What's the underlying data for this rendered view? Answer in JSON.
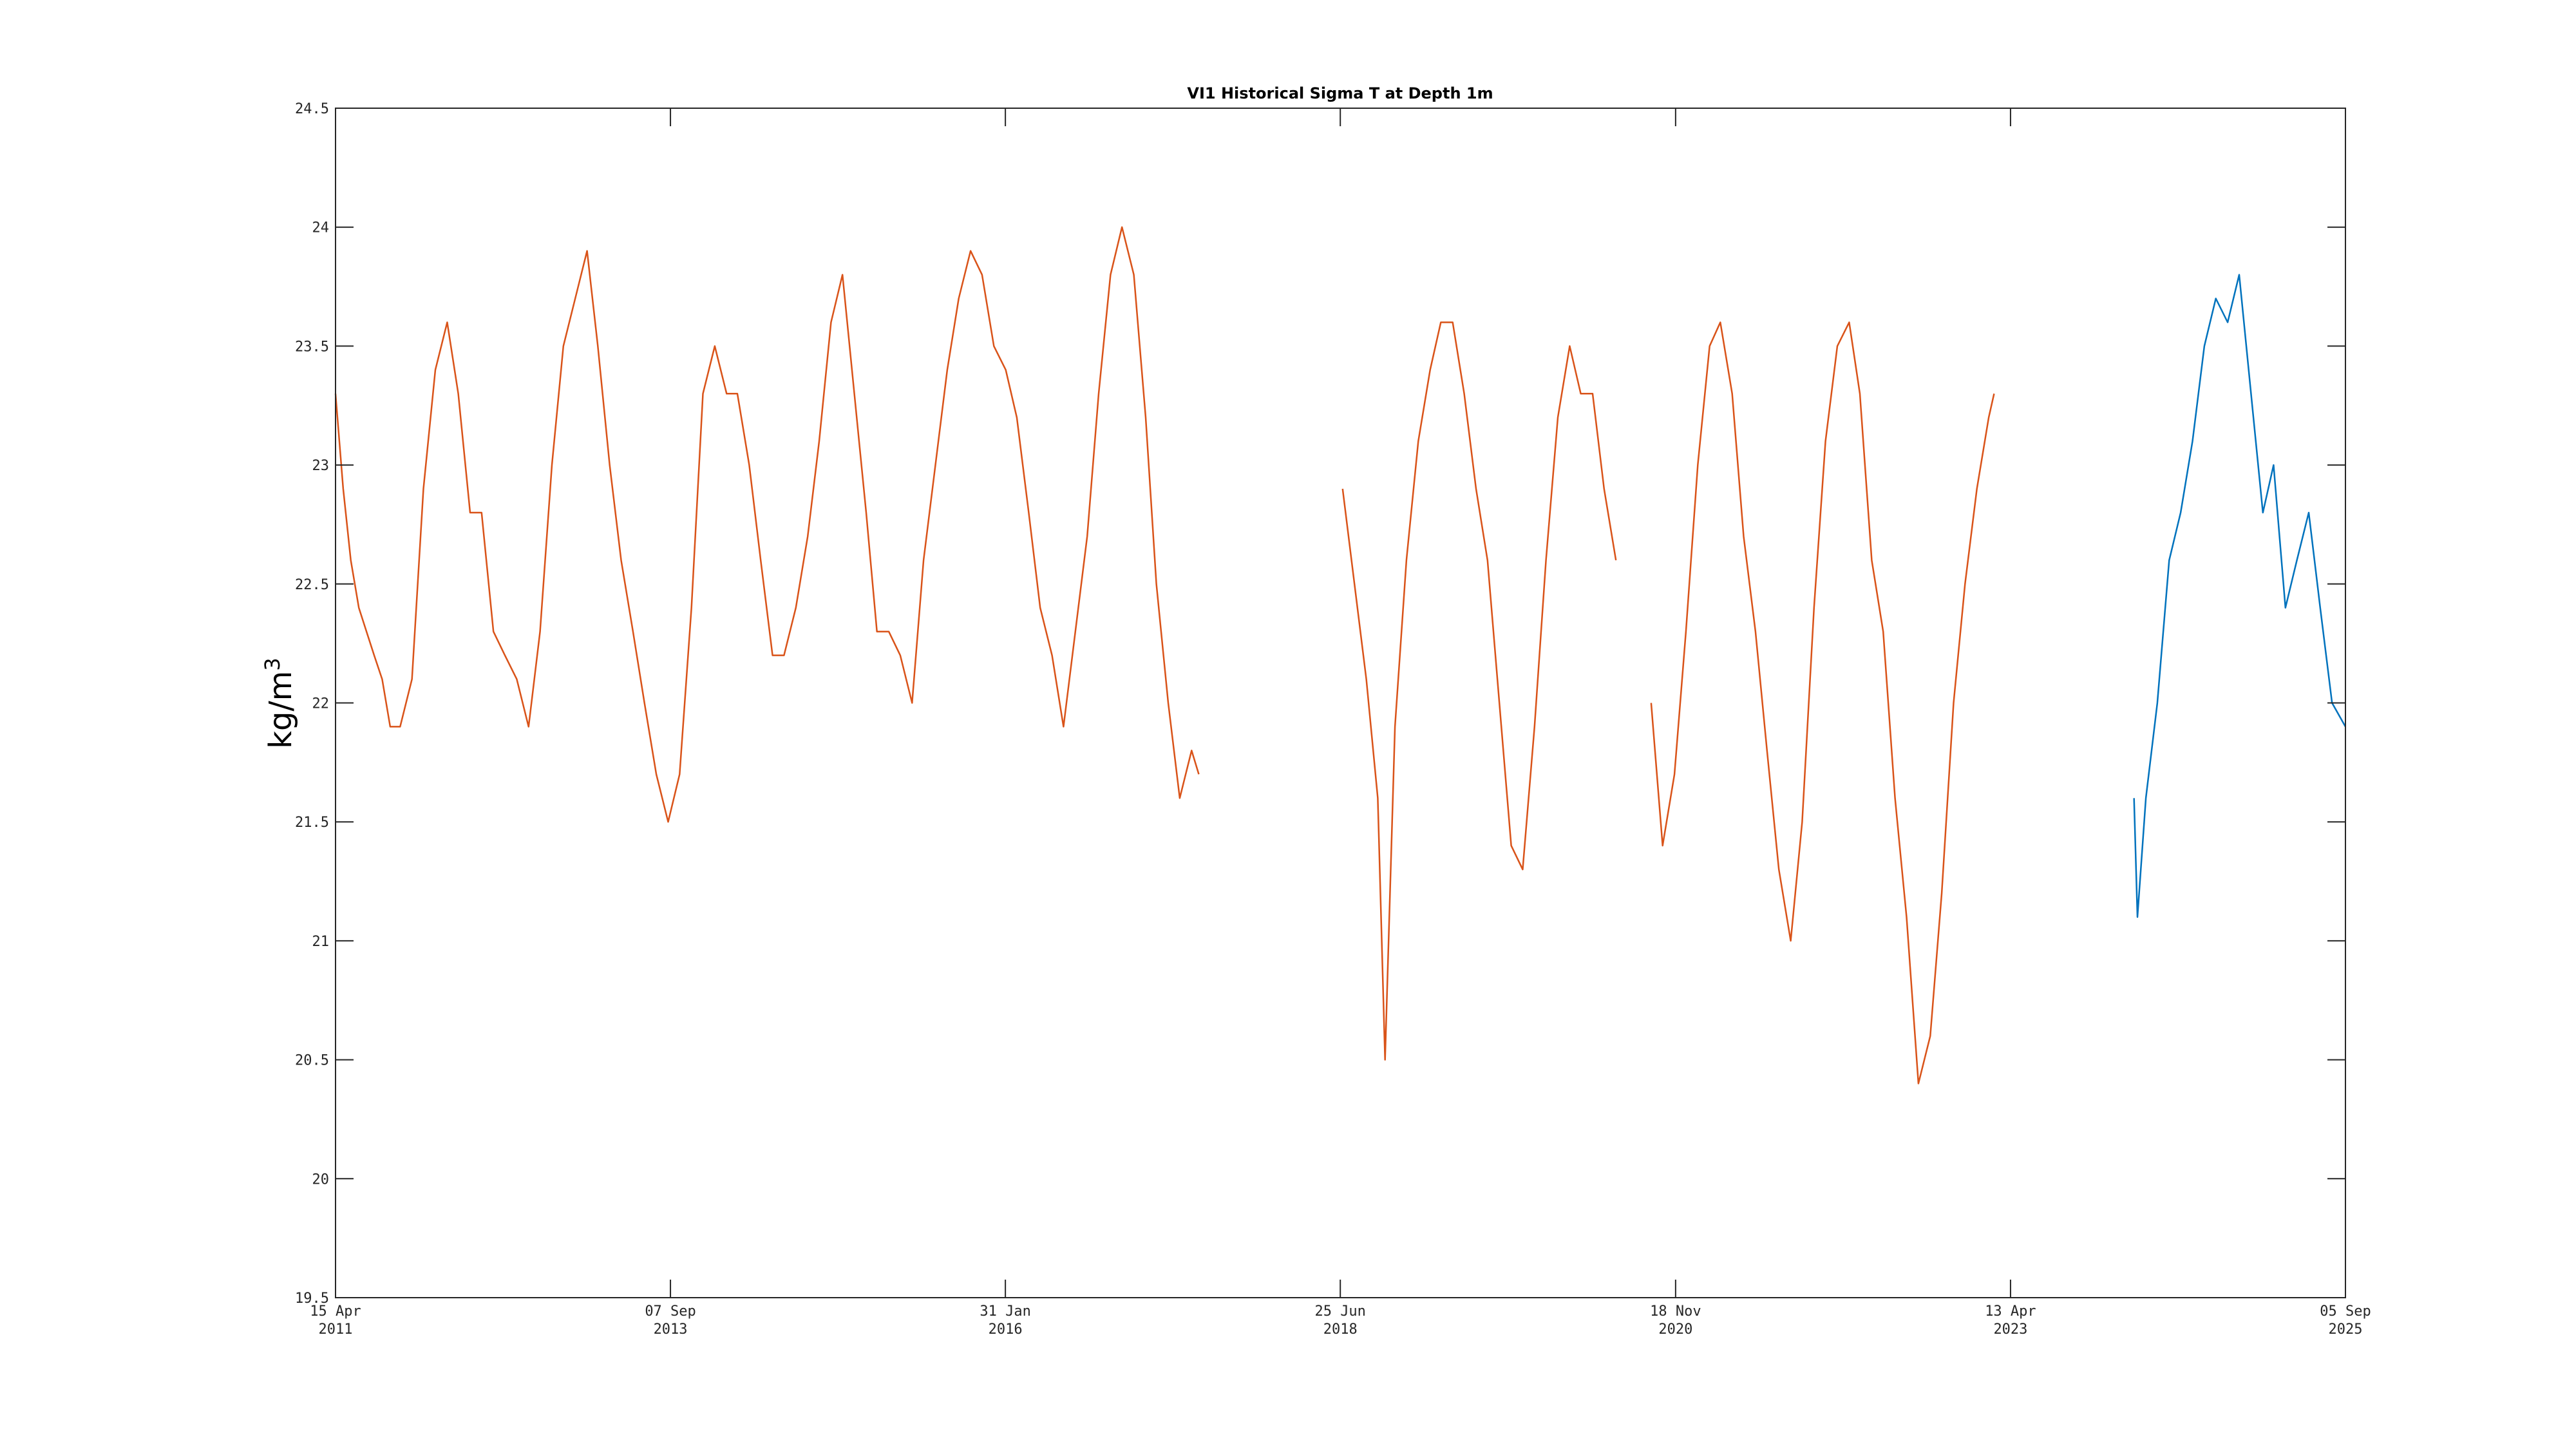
{
  "chart_data": {
    "type": "line",
    "title": "VI1 Historical Sigma T at Depth 1m",
    "ylabel": "kg/m",
    "ylabel_superscript": "3",
    "xlabel": "",
    "ylim": [
      19.5,
      24.5
    ],
    "yticks": [
      19.5,
      20,
      20.5,
      21,
      21.5,
      22,
      22.5,
      23,
      23.5,
      24,
      24.5
    ],
    "xlim": [
      "2011-04-15",
      "2025-09-05"
    ],
    "xticks": [
      {
        "date": "2011-04-15",
        "line1": "15 Apr",
        "line2": "2011"
      },
      {
        "date": "2013-09-07",
        "line1": "07 Sep",
        "line2": "2013"
      },
      {
        "date": "2016-01-31",
        "line1": "31 Jan",
        "line2": "2016"
      },
      {
        "date": "2018-06-25",
        "line1": "25 Jun",
        "line2": "2018"
      },
      {
        "date": "2020-11-18",
        "line1": "18 Nov",
        "line2": "2020"
      },
      {
        "date": "2023-04-13",
        "line1": "13 Apr",
        "line2": "2023"
      },
      {
        "date": "2025-09-05",
        "line1": "05 Sep",
        "line2": "2025"
      }
    ],
    "grid": false,
    "series": [
      {
        "color": "#D95319",
        "segments": [
          [
            [
              "2011-04-15",
              23.3
            ],
            [
              "2011-05-05",
              22.9
            ],
            [
              "2011-05-25",
              22.6
            ],
            [
              "2011-06-15",
              22.4
            ],
            [
              "2011-07-05",
              22.3
            ],
            [
              "2011-07-25",
              22.2
            ],
            [
              "2011-08-15",
              22.1
            ],
            [
              "2011-09-05",
              21.9
            ],
            [
              "2011-10-01",
              21.9
            ],
            [
              "2011-11-01",
              22.1
            ],
            [
              "2011-12-01",
              22.9
            ],
            [
              "2012-01-01",
              23.4
            ],
            [
              "2012-02-01",
              23.6
            ],
            [
              "2012-03-01",
              23.3
            ],
            [
              "2012-04-01",
              22.8
            ],
            [
              "2012-05-01",
              22.8
            ],
            [
              "2012-06-01",
              22.3
            ],
            [
              "2012-07-01",
              22.2
            ],
            [
              "2012-08-01",
              22.1
            ],
            [
              "2012-09-01",
              21.9
            ],
            [
              "2012-10-01",
              22.3
            ],
            [
              "2012-11-01",
              23.0
            ],
            [
              "2012-12-01",
              23.5
            ],
            [
              "2013-01-01",
              23.7
            ],
            [
              "2013-02-01",
              23.9
            ],
            [
              "2013-03-01",
              23.5
            ],
            [
              "2013-04-01",
              23.0
            ],
            [
              "2013-05-01",
              22.6
            ],
            [
              "2013-06-01",
              22.3
            ],
            [
              "2013-07-01",
              22.0
            ],
            [
              "2013-08-01",
              21.7
            ],
            [
              "2013-09-01",
              21.5
            ],
            [
              "2013-10-01",
              21.7
            ],
            [
              "2013-11-01",
              22.4
            ],
            [
              "2013-12-01",
              23.3
            ],
            [
              "2014-01-01",
              23.5
            ],
            [
              "2014-02-01",
              23.3
            ],
            [
              "2014-03-01",
              23.3
            ],
            [
              "2014-04-01",
              23.0
            ],
            [
              "2014-05-01",
              22.6
            ],
            [
              "2014-06-01",
              22.2
            ],
            [
              "2014-07-01",
              22.2
            ],
            [
              "2014-08-01",
              22.4
            ],
            [
              "2014-09-01",
              22.7
            ],
            [
              "2014-10-01",
              23.1
            ],
            [
              "2014-11-01",
              23.6
            ],
            [
              "2014-12-01",
              23.8
            ],
            [
              "2015-01-01",
              23.3
            ],
            [
              "2015-02-01",
              22.8
            ],
            [
              "2015-03-01",
              22.3
            ],
            [
              "2015-04-01",
              22.3
            ],
            [
              "2015-05-01",
              22.2
            ],
            [
              "2015-06-01",
              22.0
            ],
            [
              "2015-07-01",
              22.6
            ],
            [
              "2015-08-01",
              23.0
            ],
            [
              "2015-09-01",
              23.4
            ],
            [
              "2015-10-01",
              23.7
            ],
            [
              "2015-11-01",
              23.9
            ],
            [
              "2015-12-01",
              23.8
            ],
            [
              "2016-01-01",
              23.5
            ],
            [
              "2016-02-01",
              23.4
            ],
            [
              "2016-03-01",
              23.2
            ],
            [
              "2016-04-01",
              22.8
            ],
            [
              "2016-05-01",
              22.4
            ],
            [
              "2016-06-01",
              22.2
            ],
            [
              "2016-07-01",
              21.9
            ],
            [
              "2016-08-01",
              22.3
            ],
            [
              "2016-09-01",
              22.7
            ],
            [
              "2016-10-01",
              23.3
            ],
            [
              "2016-11-01",
              23.8
            ],
            [
              "2016-12-01",
              24.0
            ],
            [
              "2017-01-01",
              23.8
            ],
            [
              "2017-02-01",
              23.2
            ],
            [
              "2017-03-01",
              22.5
            ],
            [
              "2017-04-01",
              22.0
            ],
            [
              "2017-05-01",
              21.6
            ],
            [
              "2017-06-01",
              21.8
            ],
            [
              "2017-06-20",
              21.7
            ]
          ],
          [
            [
              "2018-07-01",
              22.9
            ],
            [
              "2018-08-01",
              22.5
            ],
            [
              "2018-09-01",
              22.1
            ],
            [
              "2018-10-01",
              21.6
            ],
            [
              "2018-10-20",
              20.5
            ],
            [
              "2018-11-15",
              21.9
            ],
            [
              "2018-12-15",
              22.6
            ],
            [
              "2019-01-15",
              23.1
            ],
            [
              "2019-02-15",
              23.4
            ],
            [
              "2019-03-15",
              23.6
            ],
            [
              "2019-04-15",
              23.6
            ],
            [
              "2019-05-15",
              23.3
            ],
            [
              "2019-06-15",
              22.9
            ],
            [
              "2019-07-15",
              22.6
            ],
            [
              "2019-08-15",
              22.0
            ],
            [
              "2019-09-15",
              21.4
            ],
            [
              "2019-10-15",
              21.3
            ],
            [
              "2019-11-15",
              21.9
            ],
            [
              "2019-12-15",
              22.6
            ],
            [
              "2020-01-15",
              23.2
            ],
            [
              "2020-02-15",
              23.5
            ],
            [
              "2020-03-15",
              23.3
            ],
            [
              "2020-04-15",
              23.3
            ],
            [
              "2020-05-15",
              22.9
            ],
            [
              "2020-06-15",
              22.6
            ]
          ],
          [
            [
              "2020-09-15",
              22.0
            ],
            [
              "2020-10-15",
              21.4
            ],
            [
              "2020-11-15",
              21.7
            ],
            [
              "2020-12-15",
              22.3
            ],
            [
              "2021-01-15",
              23.0
            ],
            [
              "2021-02-15",
              23.5
            ],
            [
              "2021-03-15",
              23.6
            ],
            [
              "2021-04-15",
              23.3
            ],
            [
              "2021-05-15",
              22.7
            ],
            [
              "2021-06-15",
              22.3
            ],
            [
              "2021-07-15",
              21.8
            ],
            [
              "2021-08-15",
              21.3
            ],
            [
              "2021-09-15",
              21.0
            ],
            [
              "2021-10-15",
              21.5
            ],
            [
              "2021-11-15",
              22.4
            ],
            [
              "2021-12-15",
              23.1
            ],
            [
              "2022-01-15",
              23.5
            ],
            [
              "2022-02-15",
              23.6
            ],
            [
              "2022-03-15",
              23.3
            ],
            [
              "2022-04-15",
              22.6
            ],
            [
              "2022-05-15",
              22.3
            ],
            [
              "2022-06-15",
              21.6
            ],
            [
              "2022-07-15",
              21.1
            ],
            [
              "2022-08-15",
              20.4
            ],
            [
              "2022-09-15",
              20.6
            ],
            [
              "2022-10-15",
              21.2
            ],
            [
              "2022-11-15",
              22.0
            ],
            [
              "2022-12-15",
              22.5
            ],
            [
              "2023-01-15",
              22.9
            ],
            [
              "2023-02-15",
              23.2
            ],
            [
              "2023-03-01",
              23.3
            ]
          ]
        ]
      },
      {
        "color": "#0072BD",
        "segments": [
          [
            [
              "2024-03-01",
              21.6
            ],
            [
              "2024-03-10",
              21.1
            ],
            [
              "2024-04-01",
              21.6
            ],
            [
              "2024-05-01",
              22.0
            ],
            [
              "2024-06-01",
              22.6
            ],
            [
              "2024-07-01",
              22.8
            ],
            [
              "2024-08-01",
              23.1
            ],
            [
              "2024-09-01",
              23.5
            ],
            [
              "2024-10-01",
              23.7
            ],
            [
              "2024-11-01",
              23.6
            ],
            [
              "2024-12-01",
              23.8
            ],
            [
              "2025-01-01",
              23.3
            ],
            [
              "2025-02-01",
              22.8
            ],
            [
              "2025-03-01",
              23.0
            ],
            [
              "2025-04-01",
              22.4
            ],
            [
              "2025-05-01",
              22.6
            ],
            [
              "2025-06-01",
              22.8
            ],
            [
              "2025-07-01",
              22.4
            ],
            [
              "2025-08-01",
              22.0
            ],
            [
              "2025-09-05",
              21.9
            ]
          ]
        ]
      }
    ]
  }
}
